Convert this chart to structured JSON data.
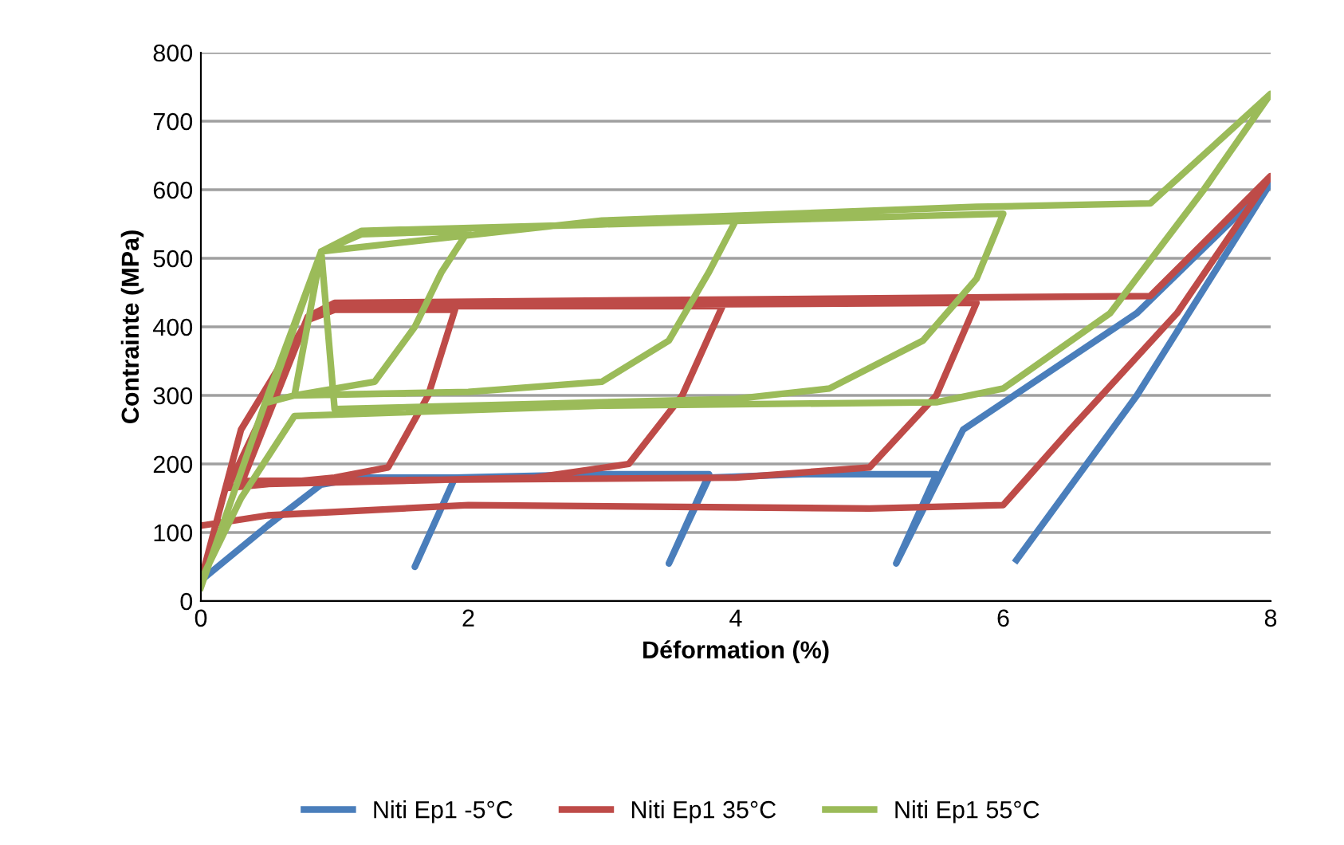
{
  "chart_data": {
    "type": "line",
    "xlabel": "Déformation (%)",
    "ylabel": "Contrainte (MPa)",
    "xlim": [
      0,
      8
    ],
    "ylim": [
      0,
      800
    ],
    "xticks": [
      0,
      2,
      4,
      6,
      8
    ],
    "yticks": [
      0,
      100,
      200,
      300,
      400,
      500,
      600,
      700,
      800
    ],
    "grid": "y",
    "legend": "bottom",
    "marker": "none",
    "line_style": "solid",
    "series": [
      {
        "name": "Niti Ep1 -5°C",
        "color": "#4a7ebb",
        "x": [
          0,
          0.5,
          0.9,
          1.2,
          1.9,
          1.6,
          1.9,
          3.0,
          3.8,
          3.5,
          3.8,
          4.5,
          5.5,
          5.2,
          5.7,
          7.0,
          8.0,
          7.0,
          6.1
        ],
        "values": [
          30,
          110,
          170,
          180,
          180,
          50,
          180,
          185,
          185,
          55,
          180,
          185,
          185,
          55,
          250,
          420,
          610,
          300,
          60
        ]
      },
      {
        "name": "Niti Ep1 35°C",
        "color": "#be4b48",
        "x": [
          0,
          0.3,
          0.8,
          1.0,
          1.9,
          1.7,
          1.4,
          1.0,
          0.2,
          0.8,
          1.0,
          3.9,
          3.6,
          3.2,
          2.5,
          0.3,
          0.8,
          1.0,
          5.8,
          5.5,
          5.0,
          4.0,
          0.3,
          0.8,
          1.0,
          4.0,
          7.1,
          8.0,
          7.3,
          6.5,
          6.0,
          5.0,
          2.0,
          0.5,
          0
        ],
        "values": [
          30,
          250,
          410,
          425,
          425,
          300,
          195,
          180,
          165,
          410,
          430,
          430,
          300,
          200,
          180,
          170,
          415,
          430,
          435,
          300,
          195,
          180,
          175,
          415,
          435,
          440,
          445,
          620,
          420,
          250,
          140,
          135,
          140,
          125,
          110
        ]
      },
      {
        "name": "Niti Ep1 55°C",
        "color": "#9bbb59",
        "x": [
          0,
          0.5,
          0.9,
          1.2,
          2.0,
          1.8,
          1.6,
          1.3,
          0.7,
          0.5,
          0.9,
          1.2,
          4.0,
          3.8,
          3.5,
          3.0,
          2.0,
          0.7,
          0.9,
          1.2,
          6.0,
          5.8,
          5.4,
          4.7,
          4.0,
          1.0,
          0.9,
          3.0,
          5.8,
          7.1,
          8.0,
          7.5,
          6.8,
          6.0,
          5.5,
          3.0,
          0.7,
          0.3,
          0
        ],
        "values": [
          20,
          300,
          510,
          535,
          540,
          480,
          400,
          320,
          300,
          290,
          510,
          540,
          555,
          480,
          380,
          320,
          305,
          300,
          510,
          540,
          565,
          470,
          380,
          310,
          295,
          280,
          510,
          555,
          575,
          580,
          740,
          600,
          420,
          310,
          290,
          285,
          270,
          150,
          30
        ]
      }
    ]
  }
}
